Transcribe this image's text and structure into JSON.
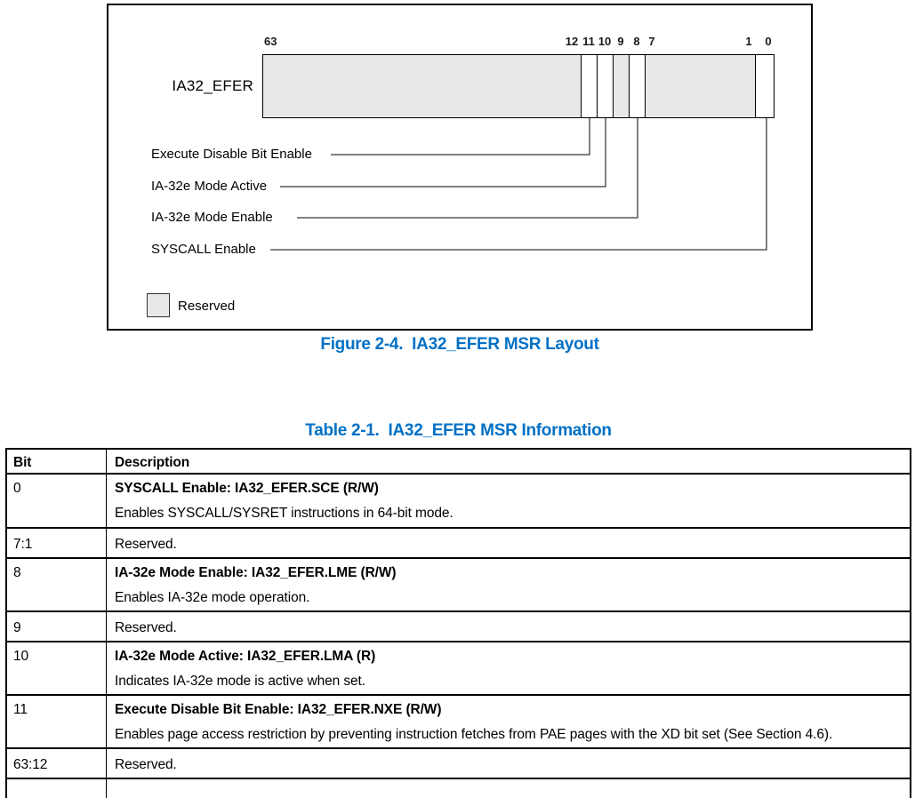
{
  "figure": {
    "register_label": "IA32_EFER",
    "bit_labels": [
      "63",
      "12",
      "11",
      "10",
      "9",
      "8",
      "7",
      "1",
      "0"
    ],
    "cells": [
      {
        "bits": "63:12",
        "reserved": true
      },
      {
        "bits": "11",
        "reserved": false
      },
      {
        "bits": "10",
        "reserved": false
      },
      {
        "bits": "9",
        "reserved": true
      },
      {
        "bits": "8",
        "reserved": false
      },
      {
        "bits": "7:1",
        "reserved": true
      },
      {
        "bits": "0",
        "reserved": false
      }
    ],
    "callouts": [
      "Execute Disable Bit Enable",
      "IA-32e Mode Active",
      "IA-32e Mode Enable",
      "SYSCALL Enable"
    ],
    "legend_label": "Reserved",
    "caption_prefix": "Figure 2-4.",
    "caption_title": "IA32_EFER MSR Layout"
  },
  "table": {
    "caption_prefix": "Table 2-1.",
    "caption_title": "IA32_EFER MSR Information",
    "columns": [
      "Bit",
      "Description"
    ],
    "rows": [
      {
        "bit": "0",
        "title": "SYSCALL Enable: IA32_EFER.SCE (R/W)",
        "desc": "Enables SYSCALL/SYSRET instructions in 64-bit mode."
      },
      {
        "bit": "7:1",
        "desc": "Reserved."
      },
      {
        "bit": "8",
        "title": "IA-32e Mode Enable: IA32_EFER.LME (R/W)",
        "desc": "Enables IA-32e mode operation."
      },
      {
        "bit": "9",
        "desc": "Reserved."
      },
      {
        "bit": "10",
        "title": "IA-32e Mode Active: IA32_EFER.LMA (R)",
        "desc": "Indicates IA-32e mode is active when set."
      },
      {
        "bit": "11",
        "title": "Execute Disable Bit Enable: IA32_EFER.NXE (R/W)",
        "desc": "Enables page access restriction by preventing instruction fetches from PAE pages with the XD bit set (See Section 4.6)."
      },
      {
        "bit": "63:12",
        "desc": "Reserved."
      }
    ]
  },
  "colors": {
    "accent_blue": "#0071C5",
    "reserved_gray": "#E8E8E8",
    "callout_line_gray": "#58585A"
  }
}
